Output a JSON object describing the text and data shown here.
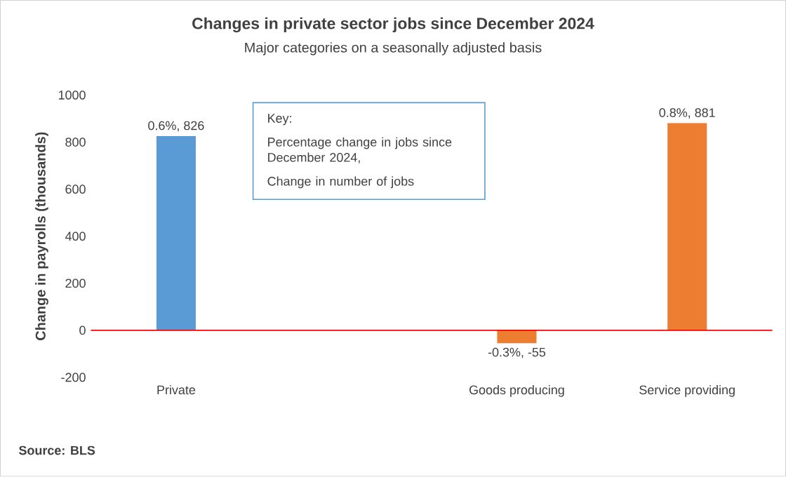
{
  "chart_data": {
    "type": "bar",
    "title": "Changes in private sector jobs since December 2024",
    "subtitle": "Major categories on a seasonally adjusted basis",
    "ylabel": "Change in payrolls (thousands)",
    "categories": [
      "Private",
      null,
      "Goods producing",
      "Service providing"
    ],
    "values": [
      826,
      null,
      -55,
      881
    ],
    "colors": [
      "#5b9bd5",
      "#5b9bd5",
      "#ed7d31",
      "#ed7d31"
    ],
    "value_labels": [
      "0.6%, 826",
      null,
      "-0.3%, -55",
      "0.8%, 881"
    ],
    "ylim": [
      -200,
      1000
    ],
    "yticks": [
      -200,
      0,
      200,
      400,
      600,
      800,
      1000
    ],
    "ref_lines": [
      {
        "axis": "y",
        "value": 0,
        "color": "#ff0000"
      }
    ],
    "annotations": [
      "Key:",
      "Percentage change in jobs since December 2024,",
      "Change in number of jobs",
      "Source: BLS"
    ]
  }
}
